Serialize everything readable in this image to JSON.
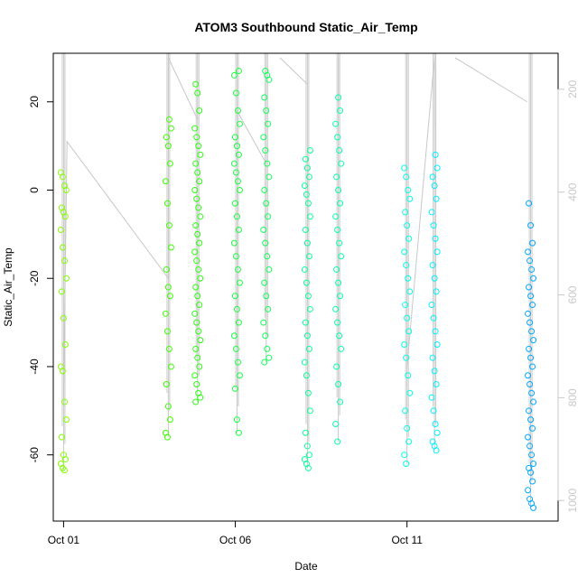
{
  "chart_data": {
    "type": "scatter",
    "title": "ATOM3 Southbound Static_Air_Temp",
    "xlabel": "Date",
    "ylabel": "Static_Air_Temp",
    "xlim": [
      -0.3,
      14.4
    ],
    "ylim": [
      -75,
      31
    ],
    "x_ticks": [
      {
        "value": 0,
        "label": "Oct 01"
      },
      {
        "value": 5,
        "label": "Oct 06"
      },
      {
        "value": 10,
        "label": "Oct 11"
      }
    ],
    "y_ticks": [
      -60,
      -40,
      -20,
      0,
      20
    ],
    "right_axis": {
      "label": "",
      "lim": [
        1040,
        130
      ],
      "ticks": [
        200,
        400,
        600,
        800,
        1000
      ],
      "color": "#c8c8c8"
    },
    "grid": false,
    "legend": "none",
    "point_color_scale": [
      "#80ff00",
      "#00ff80",
      "#00ffff",
      "#0080ff"
    ],
    "series": [
      {
        "x": 0.0,
        "color": "#84ff00",
        "y": [
          4,
          3,
          1,
          0,
          -4,
          -5,
          -6,
          -9,
          -13,
          -16,
          -20,
          -23,
          -29,
          -35,
          -40,
          -41,
          -48,
          -52,
          -56,
          -60,
          -61,
          -62,
          -63,
          -63.5
        ],
        "profile_top": 200
      },
      {
        "x": 3.05,
        "color": "#3dff00",
        "y": [
          16,
          14,
          12,
          10,
          6,
          2,
          -3,
          -8,
          -13,
          -18,
          -22,
          -24,
          -28,
          -32,
          -36,
          -40,
          -44,
          -49,
          -52,
          -55,
          -56
        ],
        "profile_top": 130
      },
      {
        "x": 3.9,
        "color": "#2bff10",
        "y": [
          24,
          22,
          18,
          14,
          12,
          10,
          8,
          6,
          4,
          2,
          0,
          -2,
          -4,
          -6,
          -8,
          -10,
          -12,
          -14,
          -16,
          -18,
          -20,
          -22,
          -24,
          -26,
          -28,
          -30,
          -32,
          -34,
          -36,
          -38,
          -40,
          -42,
          -44,
          -46,
          -47,
          -48
        ],
        "profile_top": 130
      },
      {
        "x": 5.05,
        "color": "#18ff40",
        "y": [
          27,
          26,
          22,
          18,
          15,
          12,
          10,
          8,
          6,
          4,
          2,
          0,
          -3,
          -6,
          -9,
          -12,
          -15,
          -18,
          -21,
          -24,
          -27,
          -30,
          -33,
          -36,
          -39,
          -42,
          -45,
          -52,
          -55
        ],
        "profile_top": 130
      },
      {
        "x": 5.9,
        "color": "#10ff58",
        "y": [
          27,
          26,
          25,
          21,
          18,
          15,
          12,
          9,
          6,
          3,
          0,
          -3,
          -6,
          -9,
          -12,
          -15,
          -18,
          -21,
          -24,
          -27,
          -30,
          -33,
          -36,
          -38,
          -39
        ],
        "profile_top": 130
      },
      {
        "x": 7.1,
        "color": "#08ff9a",
        "y": [
          9,
          7,
          5,
          3,
          1,
          -1,
          -3,
          -6,
          -9,
          -12,
          -15,
          -18,
          -21,
          -24,
          -27,
          -30,
          -33,
          -36,
          -39,
          -42,
          -46,
          -50,
          -55,
          -58,
          -60,
          -61,
          -62,
          -63
        ],
        "profile_top": 130
      },
      {
        "x": 8.0,
        "color": "#05ffb0",
        "y": [
          21,
          18,
          15,
          12,
          9,
          6,
          3,
          0,
          -3,
          -6,
          -9,
          -12,
          -15,
          -18,
          -21,
          -24,
          -27,
          -30,
          -33,
          -36,
          -40,
          -44,
          -48,
          -53,
          -57
        ],
        "profile_top": 130
      },
      {
        "x": 10.0,
        "color": "#00ffe6",
        "y": [
          5,
          3,
          0,
          -2,
          -5,
          -8,
          -11,
          -14,
          -17,
          -20,
          -23,
          -26,
          -29,
          -32,
          -35,
          -38,
          -42,
          -46,
          -50,
          -54,
          -57,
          -60,
          -62
        ],
        "profile_top": 130
      },
      {
        "x": 10.8,
        "color": "#00f0ff",
        "y": [
          8,
          5,
          3,
          1,
          -2,
          -5,
          -8,
          -11,
          -14,
          -17,
          -20,
          -23,
          -26,
          -29,
          -32,
          -35,
          -38,
          -41,
          -44,
          -47,
          -50,
          -53,
          -55,
          -57,
          -58,
          -59
        ],
        "profile_top": 130
      },
      {
        "x": 13.6,
        "color": "#00a8ff",
        "y": [
          -3,
          -8,
          -12,
          -14,
          -16,
          -18,
          -20,
          -22,
          -24,
          -26,
          -28,
          -30,
          -32,
          -34,
          -36,
          -38,
          -40,
          -42,
          -44,
          -46,
          -48,
          -50,
          -52,
          -54,
          -56,
          -58,
          -60,
          -62,
          -63,
          -64,
          -66,
          -68,
          -70,
          -71,
          -72
        ],
        "profile_top": 130
      }
    ],
    "connectors": [
      {
        "from": [
          0.0,
          -47
        ],
        "to": [
          0.1,
          11
        ],
        "then": [
          3.05,
          -20
        ]
      },
      {
        "from": [
          3.05,
          -20
        ],
        "to": [
          3.05,
          30
        ],
        "then": [
          3.9,
          16
        ]
      },
      {
        "from": [
          5.05,
          18
        ],
        "to": [
          5.9,
          6
        ]
      },
      {
        "from": [
          6.3,
          30
        ],
        "to": [
          7.1,
          24
        ]
      },
      {
        "from": [
          8.0,
          20
        ],
        "to": [
          8.0,
          30
        ]
      },
      {
        "from": [
          10.0,
          -40
        ],
        "to": [
          10.8,
          30
        ],
        "then": [
          10.8,
          14
        ]
      },
      {
        "from": [
          11.4,
          30
        ],
        "to": [
          13.5,
          20
        ]
      }
    ]
  }
}
